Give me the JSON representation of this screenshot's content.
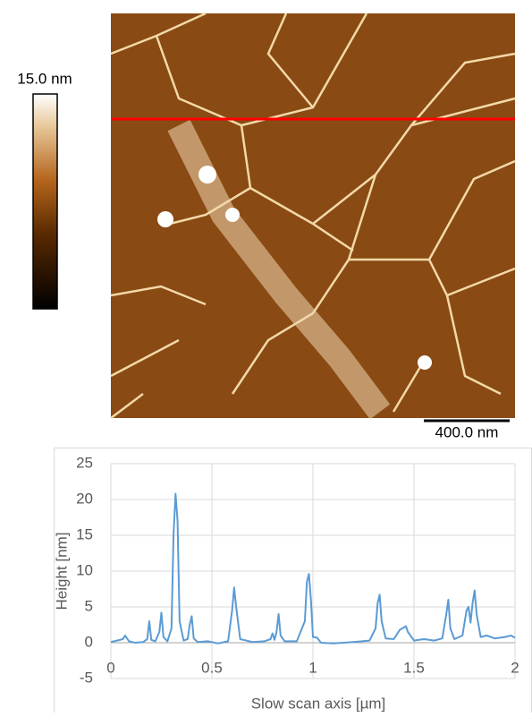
{
  "colorbar": {
    "label": "15.0 nm"
  },
  "scale_bar": {
    "label": "400.0 nm"
  },
  "chart_data": {
    "type": "line",
    "xlabel": "Slow scan axis [µm]",
    "ylabel": "Height [nm]",
    "xlim": [
      0,
      2
    ],
    "xticks": [
      0,
      0.5,
      1,
      1.5,
      2
    ],
    "ylim": [
      -5,
      25
    ],
    "yticks": [
      -5,
      0,
      5,
      10,
      15,
      20,
      25
    ],
    "grid": true,
    "series": [
      {
        "color": "#5b9bd5",
        "x": [
          0,
          0.03,
          0.06,
          0.07,
          0.09,
          0.12,
          0.16,
          0.18,
          0.19,
          0.2,
          0.22,
          0.24,
          0.25,
          0.26,
          0.28,
          0.3,
          0.31,
          0.32,
          0.33,
          0.34,
          0.36,
          0.38,
          0.39,
          0.4,
          0.41,
          0.43,
          0.48,
          0.53,
          0.58,
          0.6,
          0.61,
          0.62,
          0.64,
          0.7,
          0.76,
          0.79,
          0.8,
          0.81,
          0.82,
          0.83,
          0.84,
          0.86,
          0.92,
          0.96,
          0.97,
          0.98,
          0.99,
          1.0,
          1.02,
          1.04,
          1.1,
          1.2,
          1.28,
          1.31,
          1.32,
          1.33,
          1.34,
          1.36,
          1.4,
          1.43,
          1.46,
          1.47,
          1.5,
          1.55,
          1.6,
          1.64,
          1.66,
          1.67,
          1.68,
          1.7,
          1.74,
          1.76,
          1.77,
          1.78,
          1.79,
          1.8,
          1.81,
          1.83,
          1.86,
          1.9,
          1.95,
          1.98,
          2.0
        ],
        "values": [
          0.1,
          0.3,
          0.5,
          1.0,
          0.2,
          0,
          0.1,
          0.5,
          3.0,
          0.4,
          0.2,
          1.5,
          4.2,
          0.8,
          0.2,
          2.0,
          15,
          20.8,
          17,
          3,
          0.3,
          0.5,
          2.5,
          3.7,
          0.6,
          0.1,
          0.2,
          -0.1,
          0.2,
          4.5,
          7.7,
          5,
          0.5,
          0.1,
          0.2,
          0.5,
          1.3,
          0.4,
          1.5,
          4.0,
          1,
          0.2,
          0.2,
          3,
          8.5,
          9.6,
          6,
          0.8,
          0.7,
          0,
          -0.1,
          0.1,
          0.3,
          2,
          5.5,
          6.7,
          3,
          0.6,
          0.5,
          1.8,
          2.3,
          1.5,
          0.3,
          0.5,
          0.3,
          0.6,
          4,
          6.0,
          2,
          0.5,
          1.0,
          4.5,
          5.0,
          2.8,
          5.5,
          7.3,
          4,
          0.8,
          1.0,
          0.6,
          0.8,
          1.0,
          0.7
        ]
      }
    ]
  }
}
